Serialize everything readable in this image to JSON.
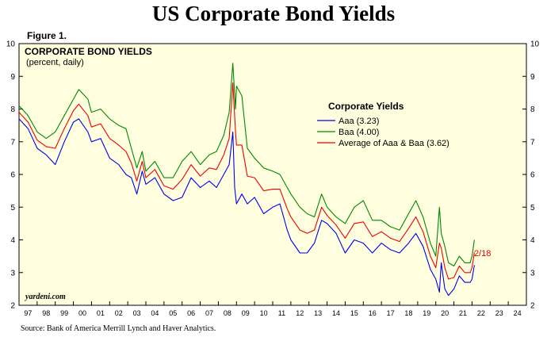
{
  "page": {
    "title": "US Corporate Bond Yields",
    "figure_label": "Figure 1.",
    "source": "Source: Bank of America Merrill Lynch and Haver Analytics."
  },
  "chart_data": {
    "type": "line",
    "title": "CORPORATE BOND YIELDS",
    "subtitle": "(percent, daily)",
    "xlabel": "",
    "ylabel": "",
    "ylim": [
      2,
      10
    ],
    "xlim": [
      1997,
      2025
    ],
    "yticks": [
      "2",
      "3",
      "4",
      "5",
      "6",
      "7",
      "8",
      "9",
      "10"
    ],
    "xticks": [
      "97",
      "98",
      "99",
      "00",
      "01",
      "02",
      "03",
      "04",
      "05",
      "06",
      "07",
      "08",
      "09",
      "10",
      "11",
      "12",
      "13",
      "14",
      "15",
      "16",
      "17",
      "18",
      "19",
      "20",
      "21",
      "22",
      "23",
      "24"
    ],
    "grid": false,
    "background": "#ffffe0",
    "legend_title": "Corporate Yields",
    "legend_position": "upper-center",
    "watermark": "yardeni.com",
    "latest_label": "2/18",
    "latest_label_color": "#dd0000",
    "series": [
      {
        "name": "Aaa (3.23)",
        "color": "#0000ee",
        "points": [
          [
            1997.0,
            7.7
          ],
          [
            1997.5,
            7.4
          ],
          [
            1998.0,
            6.8
          ],
          [
            1998.5,
            6.6
          ],
          [
            1999.0,
            6.3
          ],
          [
            1999.5,
            7.0
          ],
          [
            2000.0,
            7.6
          ],
          [
            2000.3,
            7.7
          ],
          [
            2000.8,
            7.3
          ],
          [
            2001.0,
            7.0
          ],
          [
            2001.5,
            7.1
          ],
          [
            2002.0,
            6.5
          ],
          [
            2002.5,
            6.3
          ],
          [
            2002.9,
            6.0
          ],
          [
            2003.2,
            5.9
          ],
          [
            2003.5,
            5.4
          ],
          [
            2003.8,
            6.1
          ],
          [
            2004.0,
            5.7
          ],
          [
            2004.5,
            5.9
          ],
          [
            2005.0,
            5.4
          ],
          [
            2005.5,
            5.2
          ],
          [
            2006.0,
            5.3
          ],
          [
            2006.5,
            5.9
          ],
          [
            2007.0,
            5.6
          ],
          [
            2007.5,
            5.8
          ],
          [
            2007.9,
            5.6
          ],
          [
            2008.3,
            6.0
          ],
          [
            2008.6,
            6.3
          ],
          [
            2008.8,
            7.3
          ],
          [
            2008.9,
            5.6
          ],
          [
            2009.0,
            5.1
          ],
          [
            2009.3,
            5.4
          ],
          [
            2009.6,
            5.1
          ],
          [
            2010.0,
            5.3
          ],
          [
            2010.5,
            4.8
          ],
          [
            2011.0,
            5.0
          ],
          [
            2011.4,
            5.1
          ],
          [
            2011.8,
            4.3
          ],
          [
            2012.0,
            4.0
          ],
          [
            2012.5,
            3.6
          ],
          [
            2012.9,
            3.6
          ],
          [
            2013.3,
            3.9
          ],
          [
            2013.7,
            4.6
          ],
          [
            2014.0,
            4.5
          ],
          [
            2014.5,
            4.2
          ],
          [
            2015.0,
            3.6
          ],
          [
            2015.5,
            4.0
          ],
          [
            2016.0,
            3.9
          ],
          [
            2016.5,
            3.6
          ],
          [
            2017.0,
            3.9
          ],
          [
            2017.5,
            3.7
          ],
          [
            2018.0,
            3.6
          ],
          [
            2018.5,
            3.9
          ],
          [
            2018.9,
            4.2
          ],
          [
            2019.3,
            3.8
          ],
          [
            2019.7,
            3.1
          ],
          [
            2020.0,
            2.8
          ],
          [
            2020.2,
            2.4
          ],
          [
            2020.3,
            3.3
          ],
          [
            2020.5,
            2.5
          ],
          [
            2020.7,
            2.3
          ],
          [
            2021.0,
            2.5
          ],
          [
            2021.3,
            2.9
          ],
          [
            2021.6,
            2.7
          ],
          [
            2021.9,
            2.7
          ],
          [
            2022.0,
            2.8
          ],
          [
            2022.13,
            3.23
          ]
        ]
      },
      {
        "name": "Baa (4.00)",
        "color": "#008800",
        "points": [
          [
            1997.0,
            8.1
          ],
          [
            1997.5,
            7.8
          ],
          [
            1998.0,
            7.3
          ],
          [
            1998.5,
            7.1
          ],
          [
            1999.0,
            7.3
          ],
          [
            1999.5,
            7.8
          ],
          [
            2000.0,
            8.3
          ],
          [
            2000.3,
            8.6
          ],
          [
            2000.8,
            8.3
          ],
          [
            2001.0,
            7.9
          ],
          [
            2001.5,
            8.0
          ],
          [
            2002.0,
            7.7
          ],
          [
            2002.5,
            7.5
          ],
          [
            2002.9,
            7.4
          ],
          [
            2003.2,
            6.8
          ],
          [
            2003.5,
            6.2
          ],
          [
            2003.8,
            6.7
          ],
          [
            2004.0,
            6.1
          ],
          [
            2004.5,
            6.4
          ],
          [
            2005.0,
            5.9
          ],
          [
            2005.5,
            5.9
          ],
          [
            2006.0,
            6.4
          ],
          [
            2006.5,
            6.7
          ],
          [
            2007.0,
            6.3
          ],
          [
            2007.5,
            6.6
          ],
          [
            2007.9,
            6.7
          ],
          [
            2008.3,
            7.2
          ],
          [
            2008.6,
            7.9
          ],
          [
            2008.8,
            9.4
          ],
          [
            2008.95,
            8.0
          ],
          [
            2009.0,
            8.7
          ],
          [
            2009.3,
            8.4
          ],
          [
            2009.6,
            6.8
          ],
          [
            2010.0,
            6.5
          ],
          [
            2010.5,
            6.2
          ],
          [
            2011.0,
            6.1
          ],
          [
            2011.4,
            6.0
          ],
          [
            2011.8,
            5.6
          ],
          [
            2012.0,
            5.4
          ],
          [
            2012.5,
            5.0
          ],
          [
            2012.9,
            4.8
          ],
          [
            2013.3,
            4.7
          ],
          [
            2013.7,
            5.4
          ],
          [
            2014.0,
            5.0
          ],
          [
            2014.5,
            4.7
          ],
          [
            2015.0,
            4.5
          ],
          [
            2015.5,
            5.0
          ],
          [
            2016.0,
            5.2
          ],
          [
            2016.5,
            4.6
          ],
          [
            2017.0,
            4.6
          ],
          [
            2017.5,
            4.4
          ],
          [
            2018.0,
            4.3
          ],
          [
            2018.5,
            4.8
          ],
          [
            2018.9,
            5.2
          ],
          [
            2019.3,
            4.7
          ],
          [
            2019.7,
            3.9
          ],
          [
            2020.0,
            3.5
          ],
          [
            2020.2,
            5.0
          ],
          [
            2020.3,
            4.2
          ],
          [
            2020.5,
            3.8
          ],
          [
            2020.7,
            3.3
          ],
          [
            2021.0,
            3.2
          ],
          [
            2021.3,
            3.5
          ],
          [
            2021.6,
            3.3
          ],
          [
            2021.9,
            3.3
          ],
          [
            2022.0,
            3.5
          ],
          [
            2022.13,
            4.0
          ]
        ]
      },
      {
        "name": "Average of Aaa & Baa (3.62)",
        "color": "#ee0000",
        "points": [
          [
            1997.0,
            7.9
          ],
          [
            1997.5,
            7.6
          ],
          [
            1998.0,
            7.05
          ],
          [
            1998.5,
            6.85
          ],
          [
            1999.0,
            6.8
          ],
          [
            1999.5,
            7.4
          ],
          [
            2000.0,
            7.95
          ],
          [
            2000.3,
            8.15
          ],
          [
            2000.8,
            7.8
          ],
          [
            2001.0,
            7.45
          ],
          [
            2001.5,
            7.55
          ],
          [
            2002.0,
            7.1
          ],
          [
            2002.5,
            6.9
          ],
          [
            2002.9,
            6.7
          ],
          [
            2003.2,
            6.35
          ],
          [
            2003.5,
            5.8
          ],
          [
            2003.8,
            6.4
          ],
          [
            2004.0,
            5.9
          ],
          [
            2004.5,
            6.15
          ],
          [
            2005.0,
            5.65
          ],
          [
            2005.5,
            5.55
          ],
          [
            2006.0,
            5.85
          ],
          [
            2006.5,
            6.3
          ],
          [
            2007.0,
            5.95
          ],
          [
            2007.5,
            6.2
          ],
          [
            2007.9,
            6.15
          ],
          [
            2008.3,
            6.6
          ],
          [
            2008.6,
            7.1
          ],
          [
            2008.8,
            8.8
          ],
          [
            2008.95,
            7.3
          ],
          [
            2009.0,
            6.9
          ],
          [
            2009.3,
            6.9
          ],
          [
            2009.6,
            5.95
          ],
          [
            2010.0,
            5.9
          ],
          [
            2010.5,
            5.5
          ],
          [
            2011.0,
            5.55
          ],
          [
            2011.4,
            5.55
          ],
          [
            2011.8,
            4.95
          ],
          [
            2012.0,
            4.7
          ],
          [
            2012.5,
            4.3
          ],
          [
            2012.9,
            4.2
          ],
          [
            2013.3,
            4.3
          ],
          [
            2013.7,
            5.0
          ],
          [
            2014.0,
            4.75
          ],
          [
            2014.5,
            4.45
          ],
          [
            2015.0,
            4.05
          ],
          [
            2015.5,
            4.5
          ],
          [
            2016.0,
            4.55
          ],
          [
            2016.5,
            4.1
          ],
          [
            2017.0,
            4.25
          ],
          [
            2017.5,
            4.05
          ],
          [
            2018.0,
            3.95
          ],
          [
            2018.5,
            4.35
          ],
          [
            2018.9,
            4.7
          ],
          [
            2019.3,
            4.25
          ],
          [
            2019.7,
            3.5
          ],
          [
            2020.0,
            3.15
          ],
          [
            2020.2,
            3.9
          ],
          [
            2020.3,
            3.75
          ],
          [
            2020.5,
            3.15
          ],
          [
            2020.7,
            2.8
          ],
          [
            2021.0,
            2.85
          ],
          [
            2021.3,
            3.2
          ],
          [
            2021.6,
            3.0
          ],
          [
            2021.9,
            3.0
          ],
          [
            2022.0,
            3.15
          ],
          [
            2022.13,
            3.62
          ]
        ]
      }
    ]
  }
}
